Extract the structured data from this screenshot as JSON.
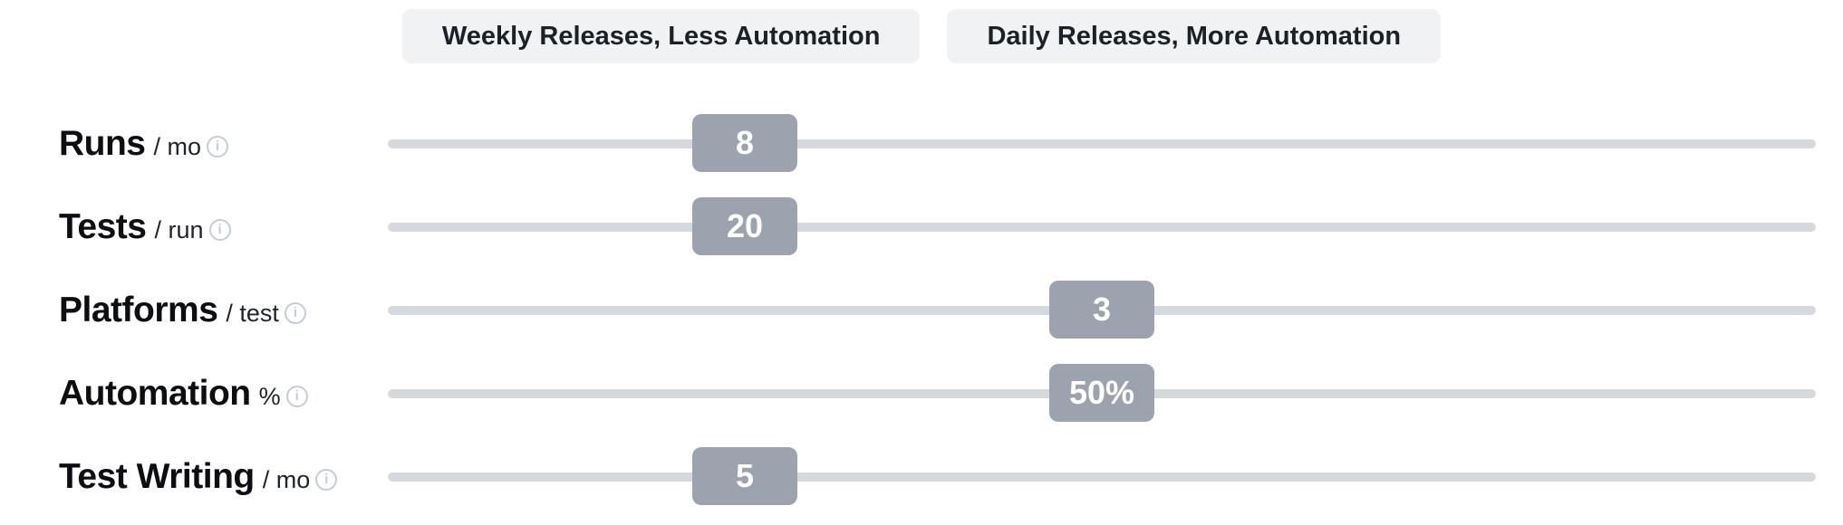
{
  "presets": {
    "weekly": {
      "label": "Weekly Releases, Less Automation"
    },
    "daily": {
      "label": "Daily Releases, More Automation"
    }
  },
  "sliders": [
    {
      "name": "Runs",
      "unit": "/ mo",
      "value": "8",
      "position_pct": 25
    },
    {
      "name": "Tests",
      "unit": "/ run",
      "value": "20",
      "position_pct": 25
    },
    {
      "name": "Platforms",
      "unit": "/ test",
      "value": "3",
      "position_pct": 50
    },
    {
      "name": "Automation",
      "unit": "%",
      "value": "50%",
      "position_pct": 50
    },
    {
      "name": "Test Writing",
      "unit": "/ mo",
      "value": "5",
      "position_pct": 25
    }
  ],
  "icons": {
    "info_glyph": "i"
  },
  "colors": {
    "background": "#ffffff",
    "preset_bg": "#f1f2f4",
    "preset_text": "#1c2027",
    "track": "#d5d8dd",
    "handle": "#9ca3af",
    "handle_text": "#ffffff",
    "label_text": "#0c0e12",
    "info_icon": "#c6ccd4"
  }
}
